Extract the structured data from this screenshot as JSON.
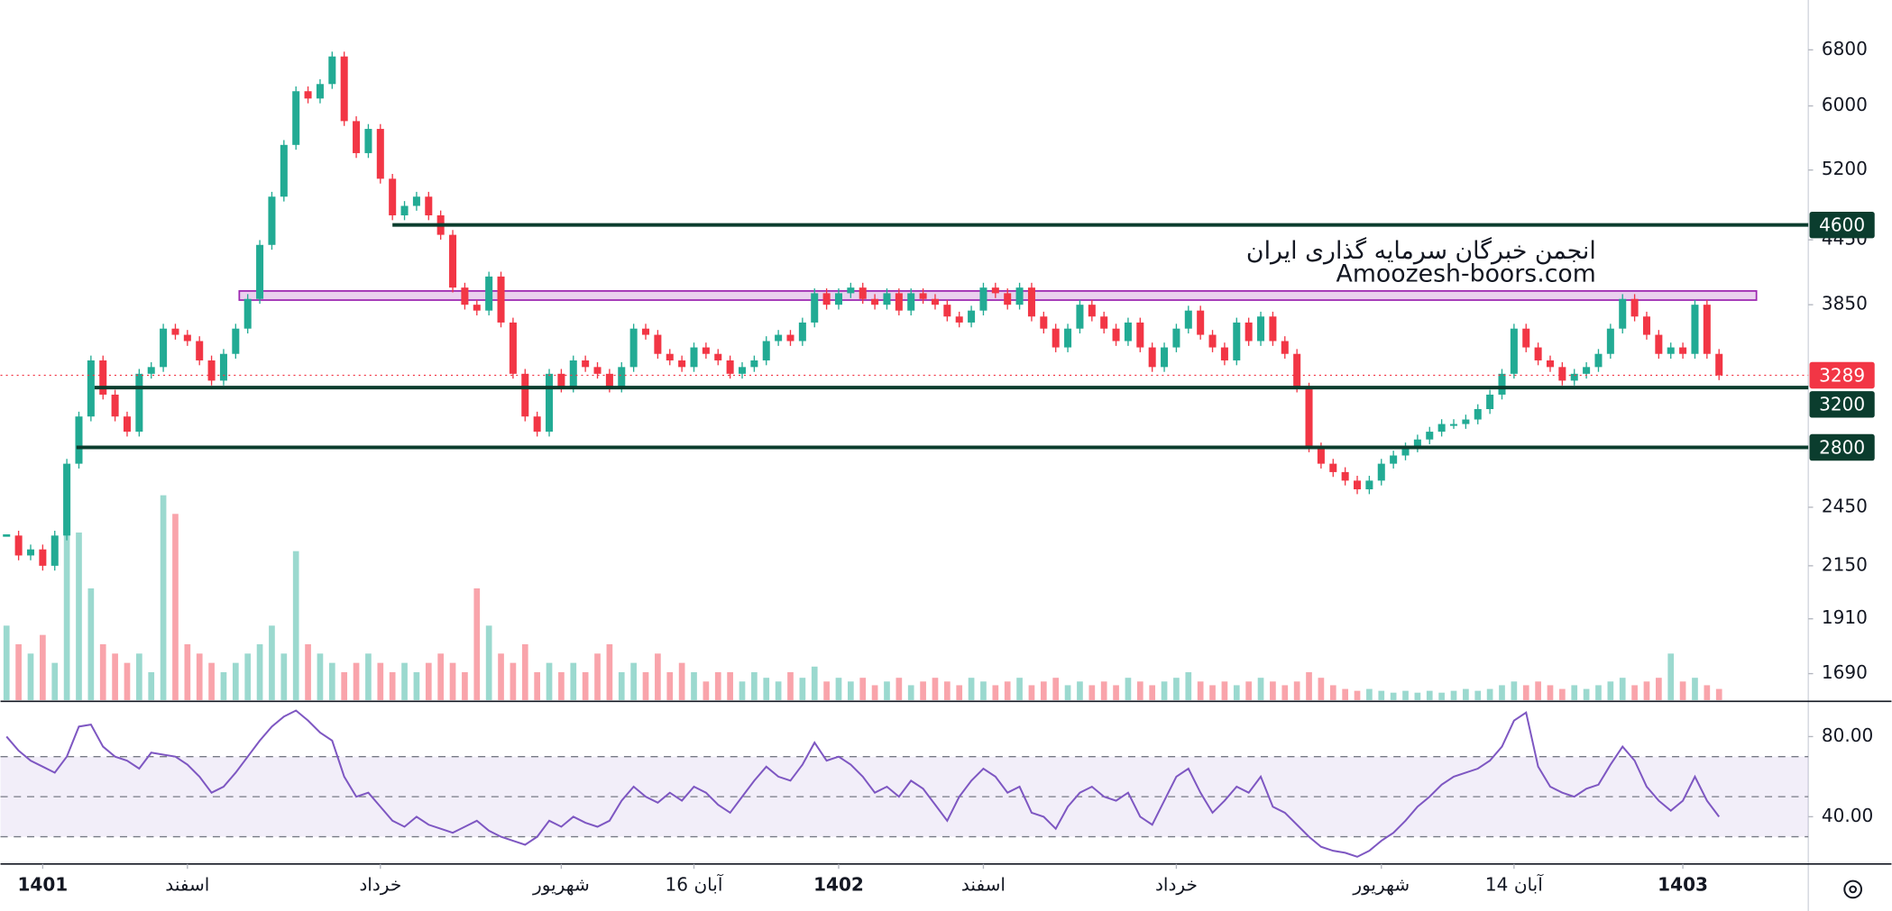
{
  "chart_data": {
    "type": "candlestick",
    "log_scale": true,
    "up_color": "#22ab94",
    "down_color": "#f23645",
    "ylim": [
      1593,
      7600
    ],
    "yticks": [
      6800,
      6000,
      5200,
      4450,
      3850,
      2450,
      2150,
      1910,
      1690
    ],
    "xticks": [
      {
        "value": 3,
        "label": "1401"
      },
      {
        "value": 15,
        "label": "اسفند"
      },
      {
        "value": 31,
        "label": "خرداد"
      },
      {
        "value": 46,
        "label": "شهریور"
      },
      {
        "value": 57,
        "label": "16 آبان"
      },
      {
        "value": 69,
        "label": "1402"
      },
      {
        "value": 81,
        "label": "اسفند"
      },
      {
        "value": 97,
        "label": "خرداد"
      },
      {
        "value": 114,
        "label": "شهریور"
      },
      {
        "value": 125,
        "label": "14 آبان"
      },
      {
        "value": 139,
        "label": "1403"
      }
    ],
    "close": [
      2300,
      2200,
      2230,
      2150,
      2300,
      2700,
      3000,
      3400,
      3150,
      3000,
      2900,
      3300,
      3350,
      3650,
      3600,
      3550,
      3400,
      3250,
      3450,
      3650,
      3900,
      4400,
      4900,
      5500,
      6200,
      6100,
      6300,
      6700,
      5800,
      5400,
      5700,
      5100,
      4700,
      4800,
      4900,
      4700,
      4500,
      4000,
      3850,
      3800,
      4100,
      3700,
      3300,
      3000,
      2900,
      3300,
      3200,
      3400,
      3350,
      3300,
      3200,
      3350,
      3650,
      3600,
      3450,
      3400,
      3350,
      3500,
      3450,
      3400,
      3300,
      3350,
      3400,
      3550,
      3600,
      3550,
      3700,
      3950,
      3850,
      3950,
      4000,
      3900,
      3850,
      3950,
      3800,
      3950,
      3900,
      3850,
      3750,
      3700,
      3800,
      4000,
      3950,
      3850,
      4000,
      3750,
      3650,
      3500,
      3650,
      3850,
      3750,
      3650,
      3550,
      3700,
      3500,
      3350,
      3500,
      3650,
      3800,
      3600,
      3500,
      3400,
      3700,
      3550,
      3750,
      3550,
      3450,
      3200,
      2800,
      2700,
      2650,
      2600,
      2550,
      2600,
      2700,
      2750,
      2800,
      2850,
      2900,
      2950,
      2950,
      2980,
      3050,
      3150,
      3300,
      3650,
      3500,
      3400,
      3350,
      3250,
      3300,
      3350,
      3450,
      3650,
      3900,
      3750,
      3600,
      3450,
      3500,
      3450,
      3850,
      3450,
      3289
    ],
    "volume": [
      40,
      30,
      25,
      35,
      20,
      100,
      90,
      60,
      30,
      25,
      20,
      25,
      15,
      110,
      100,
      30,
      25,
      20,
      15,
      20,
      25,
      30,
      40,
      25,
      80,
      30,
      25,
      20,
      15,
      20,
      25,
      20,
      15,
      20,
      15,
      20,
      25,
      20,
      15,
      60,
      40,
      25,
      20,
      30,
      15,
      20,
      15,
      20,
      15,
      25,
      30,
      15,
      20,
      15,
      25,
      15,
      20,
      15,
      10,
      15,
      15,
      10,
      15,
      12,
      10,
      15,
      12,
      18,
      10,
      12,
      10,
      12,
      8,
      10,
      12,
      8,
      10,
      12,
      10,
      8,
      12,
      10,
      8,
      10,
      12,
      8,
      10,
      12,
      8,
      10,
      8,
      10,
      8,
      12,
      10,
      8,
      10,
      12,
      15,
      10,
      8,
      10,
      8,
      10,
      12,
      10,
      8,
      10,
      15,
      12,
      8,
      6,
      5,
      6,
      5,
      4,
      5,
      4,
      5,
      4,
      5,
      6,
      5,
      6,
      8,
      10,
      8,
      10,
      8,
      6,
      8,
      6,
      8,
      10,
      12,
      8,
      10,
      12,
      25,
      10,
      12,
      8,
      6
    ],
    "levels": [
      4600,
      3200,
      2800
    ],
    "level_color": "#0b3d2e",
    "last_price": 3289,
    "resistance_band": [
      3890,
      3970
    ],
    "annotation": [
      "انجمن خبرگان سرمایه گذاری ایران",
      "Amoozesh-boors.com"
    ],
    "rsi": {
      "color": "#7e57c2",
      "ylim": [
        17,
        97
      ],
      "yticks": [
        {
          "value": 80,
          "label": "80.00"
        },
        {
          "value": 40,
          "label": "40.00"
        }
      ],
      "bands": [
        30,
        50,
        70
      ],
      "values": [
        80,
        73,
        68,
        65,
        62,
        70,
        85,
        86,
        75,
        70,
        68,
        64,
        72,
        71,
        70,
        66,
        60,
        52,
        55,
        62,
        70,
        78,
        85,
        90,
        93,
        88,
        82,
        78,
        60,
        50,
        52,
        45,
        38,
        35,
        40,
        36,
        34,
        32,
        35,
        38,
        33,
        30,
        28,
        26,
        30,
        38,
        35,
        40,
        37,
        35,
        38,
        48,
        55,
        50,
        47,
        52,
        48,
        55,
        52,
        46,
        42,
        50,
        58,
        65,
        60,
        58,
        66,
        77,
        68,
        70,
        66,
        60,
        52,
        55,
        50,
        58,
        54,
        46,
        38,
        50,
        58,
        64,
        60,
        52,
        55,
        42,
        40,
        34,
        45,
        52,
        55,
        50,
        48,
        52,
        40,
        36,
        48,
        60,
        64,
        52,
        42,
        48,
        55,
        52,
        60,
        45,
        42,
        36,
        30,
        25,
        23,
        22,
        20,
        23,
        28,
        32,
        38,
        45,
        50,
        56,
        60,
        62,
        64,
        68,
        75,
        88,
        92,
        65,
        55,
        52,
        50,
        54,
        56,
        66,
        75,
        68,
        55,
        48,
        43,
        48,
        60,
        48,
        40
      ]
    }
  }
}
